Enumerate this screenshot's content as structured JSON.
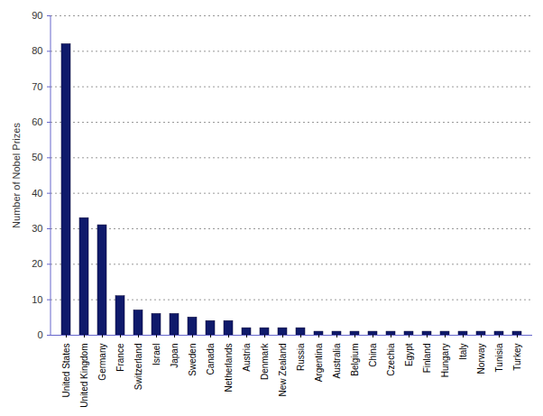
{
  "chart_data": {
    "type": "bar",
    "y_label": "Number of Nobel Prizes",
    "categories": [
      "United States",
      "United Kingdom",
      "Germany",
      "France",
      "Switzerland",
      "Israel",
      "Japan",
      "Sweden",
      "Canada",
      "Netherlands",
      "Austria",
      "Denmark",
      "New Zealand",
      "Russia",
      "Argentina",
      "Australia",
      "Belgium",
      "China",
      "Czechia",
      "Egypt",
      "Finland",
      "Hungary",
      "Italy",
      "Norway",
      "Tunisia",
      "Turkey"
    ],
    "values": [
      82,
      33,
      31,
      11,
      7,
      6,
      6,
      5,
      4,
      4,
      2,
      2,
      2,
      2,
      1,
      1,
      1,
      1,
      1,
      1,
      1,
      1,
      1,
      1,
      1,
      1
    ],
    "color": "#0f1a6b",
    "ylim": [
      0,
      90
    ],
    "yticks": [
      0,
      10,
      20,
      30,
      40,
      50,
      60,
      70,
      80,
      90
    ],
    "grid": true
  }
}
